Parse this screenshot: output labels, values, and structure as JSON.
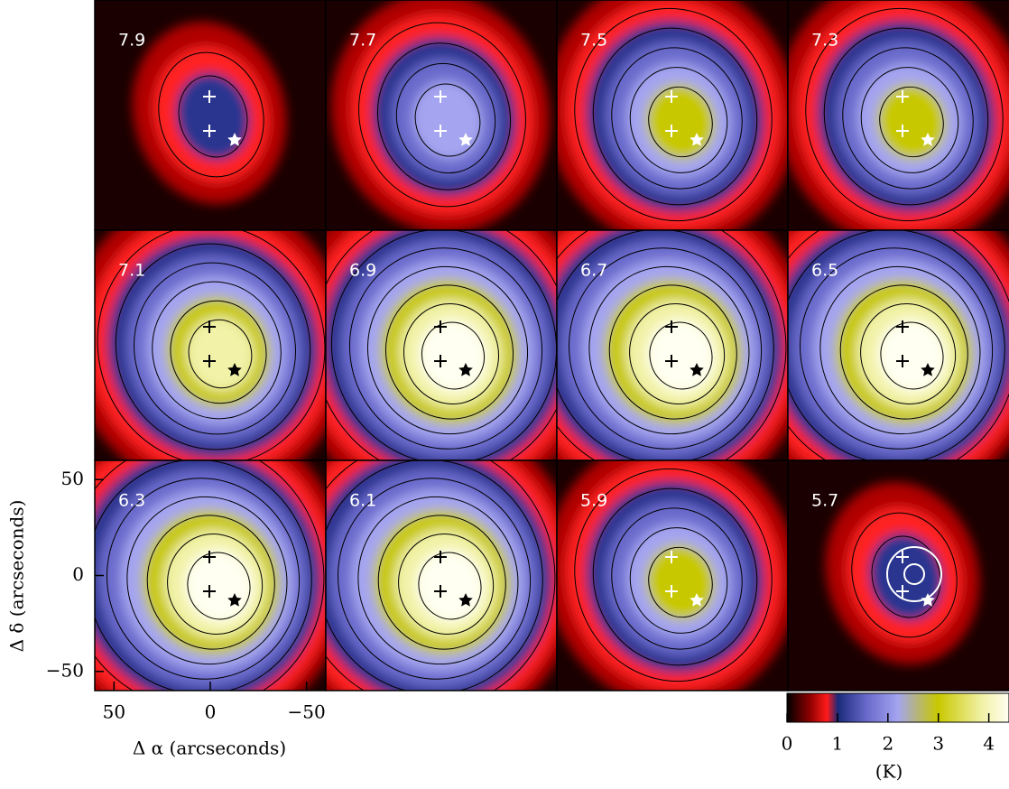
{
  "chart_data": {
    "type": "channel-map",
    "panels": [
      7.9,
      7.7,
      7.5,
      7.3,
      7.1,
      6.9,
      6.7,
      6.5,
      6.3,
      6.1,
      5.9,
      5.7
    ],
    "xlabel": "Δ α (arcseconds)",
    "ylabel": "Δ δ (arcseconds)",
    "xlim": [
      60,
      -60
    ],
    "ylim": [
      -60,
      60
    ],
    "xticks": [
      50,
      0,
      {
        "value": -50,
        "label": "−50"
      }
    ],
    "yticks": [
      50,
      0,
      {
        "value": -50,
        "label": "−50"
      }
    ],
    "colorbar": {
      "label": "(K)",
      "lim": [
        0,
        4.4
      ],
      "ticks": [
        0,
        1,
        2,
        3,
        4
      ]
    }
  }
}
